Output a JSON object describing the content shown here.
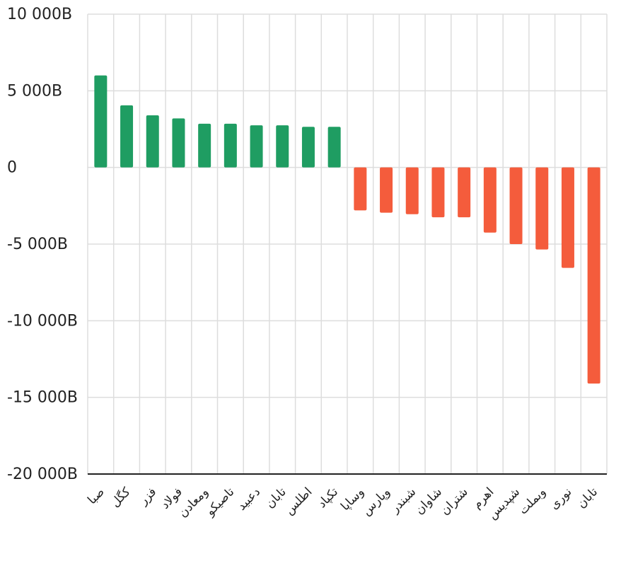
{
  "chart_data": {
    "type": "bar",
    "title": "",
    "xlabel": "",
    "ylabel": "",
    "ylim": [
      -20000,
      10000
    ],
    "y_ticks": [
      10000,
      5000,
      0,
      -5000,
      -10000,
      -15000,
      -20000
    ],
    "y_tick_labels": [
      "10 000B",
      "5 000B",
      "0",
      "-5 000B",
      "-10 000B",
      "-15 000B",
      "-20 000B"
    ],
    "grid": true,
    "categories": [
      "صبا",
      "کگل",
      "فزر",
      "فولاد",
      "ومعادن",
      "تاصیکو",
      "دعبید",
      "تابان",
      "اطلس",
      "تکپاد",
      "وساپا",
      "وپارس",
      "شبندر",
      "شاوان",
      "شتران",
      "اهرم",
      "شپدیس",
      "وبملت",
      "نوری",
      "تابان"
    ],
    "values": [
      6000,
      4050,
      3400,
      3200,
      2850,
      2850,
      2750,
      2750,
      2650,
      2650,
      -2800,
      -2950,
      -3050,
      -3250,
      -3250,
      -4250,
      -5000,
      -5350,
      -6550,
      -14100
    ],
    "colors": {
      "positive": "#1f9d62",
      "negative": "#f45c3c",
      "grid": "#dddddd",
      "axis": "#222222"
    }
  }
}
